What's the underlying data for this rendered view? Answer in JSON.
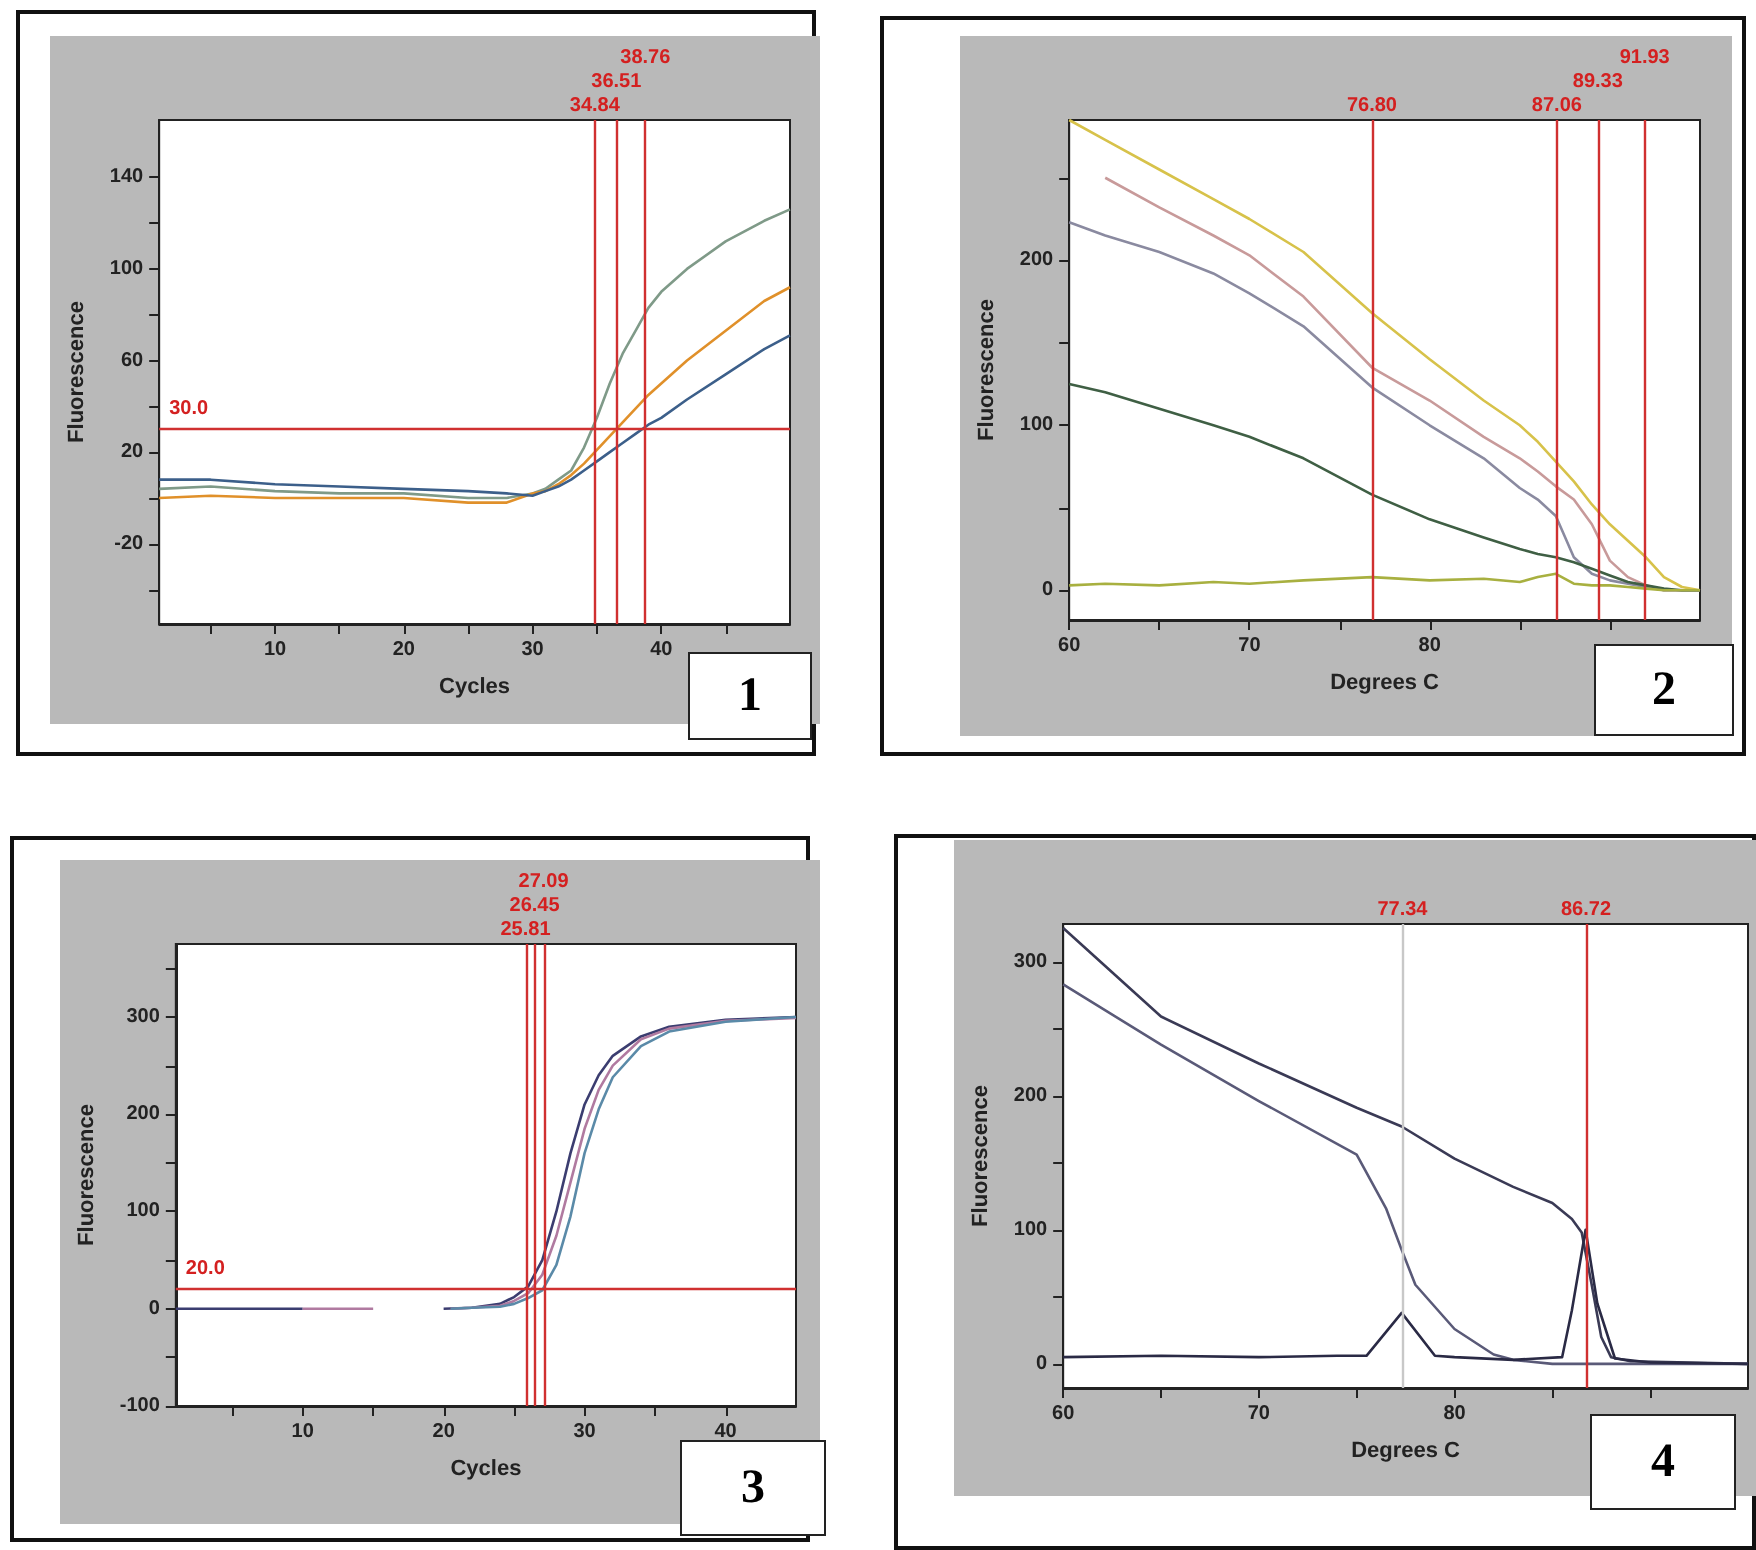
{
  "chart_data": [
    {
      "type": "line",
      "xlabel": "Cycles",
      "ylabel": "Fluorescence",
      "annotations": [
        "1"
      ],
      "xlim": [
        1,
        50
      ],
      "ylim": [
        -55,
        165
      ],
      "xticks": [
        {
          "value": 5,
          "label": null
        },
        10,
        {
          "value": 15,
          "label": null
        },
        20,
        {
          "value": 25,
          "label": null
        },
        30,
        {
          "value": 35,
          "label": null
        },
        40,
        {
          "value": 45,
          "label": null
        }
      ],
      "yticks": [
        {
          "value": -40,
          "label": null
        },
        -20,
        {
          "value": 0,
          "label": null
        },
        20,
        {
          "value": 40,
          "label": null
        },
        60,
        {
          "value": 80,
          "label": null
        },
        100,
        {
          "value": 120,
          "label": null
        },
        140
      ],
      "x": [
        1,
        5,
        10,
        15,
        20,
        25,
        28,
        30,
        31,
        32,
        33,
        34,
        35,
        36,
        37,
        38,
        39,
        40,
        42,
        45,
        48,
        50
      ],
      "series": [
        {
          "color": "#7f9a88",
          "values": [
            4,
            5,
            3,
            2,
            2,
            0,
            0,
            2,
            4,
            8,
            12,
            22,
            35,
            50,
            63,
            73,
            83,
            90,
            100,
            112,
            121,
            126
          ]
        },
        {
          "color": "#e0902a",
          "values": [
            0,
            1,
            0,
            0,
            0,
            -2,
            -2,
            2,
            3,
            6,
            10,
            15,
            21,
            27,
            33,
            39,
            45,
            50,
            60,
            73,
            86,
            92
          ]
        },
        {
          "color": "#3c5f8a",
          "values": [
            8,
            8,
            6,
            5,
            4,
            3,
            2,
            1,
            3,
            5,
            8,
            12,
            16,
            20,
            24,
            28,
            32,
            35,
            43,
            54,
            65,
            71
          ]
        }
      ],
      "ref_lines": [
        {
          "axis": "y",
          "value": 30,
          "label": "30.0",
          "color": "#d03030"
        },
        {
          "axis": "x",
          "value": 34.84,
          "label": "34.84",
          "color": "#d03030"
        },
        {
          "axis": "x",
          "value": 36.51,
          "label": "36.51",
          "color": "#d03030"
        },
        {
          "axis": "x",
          "value": 38.76,
          "label": "38.76",
          "color": "#d03030"
        }
      ]
    },
    {
      "type": "line",
      "xlabel": "Degrees C",
      "ylabel": "Fluorescence",
      "annotations": [
        "2"
      ],
      "xlim": [
        60,
        95
      ],
      "ylim": [
        -18,
        285
      ],
      "xticks": [
        60,
        {
          "value": 65,
          "label": null
        },
        70,
        {
          "value": 75,
          "label": null
        },
        80,
        {
          "value": 85,
          "label": null
        },
        {
          "value": 90,
          "label": null
        }
      ],
      "yticks": [
        0,
        {
          "value": 50,
          "label": null
        },
        100,
        {
          "value": 150,
          "label": null
        },
        200,
        {
          "value": 250,
          "label": null
        }
      ],
      "x": [
        60,
        62,
        65,
        68,
        70,
        73,
        76.8,
        80,
        83,
        85,
        86,
        87,
        88,
        89,
        90,
        91,
        92,
        93,
        94,
        95
      ],
      "series": [
        {
          "color": "#d7c24a",
          "values": [
            285,
            273,
            255,
            237,
            225,
            205,
            168,
            140,
            115,
            100,
            90,
            78,
            66,
            52,
            40,
            30,
            20,
            8,
            2,
            0
          ]
        },
        {
          "color": "#c89a9a",
          "values": [
            null,
            250,
            232,
            215,
            203,
            178,
            135,
            115,
            93,
            80,
            72,
            63,
            55,
            40,
            18,
            8,
            3,
            0,
            0,
            0
          ]
        },
        {
          "color": "#8a8aa0",
          "values": [
            223,
            215,
            205,
            192,
            180,
            160,
            123,
            100,
            80,
            62,
            55,
            45,
            20,
            10,
            6,
            4,
            2,
            0,
            0,
            0
          ]
        },
        {
          "color": "#3f5f44",
          "values": [
            125,
            120,
            110,
            100,
            93,
            80,
            58,
            43,
            32,
            25,
            22,
            20,
            17,
            13,
            9,
            5,
            3,
            1,
            0,
            0
          ]
        },
        {
          "color": "#a8b040",
          "values": [
            3,
            4,
            3,
            5,
            4,
            6,
            8,
            6,
            7,
            5,
            8,
            10,
            4,
            3,
            3,
            2,
            1,
            0,
            0,
            0
          ]
        }
      ],
      "ref_lines": [
        {
          "axis": "x",
          "value": 76.8,
          "label": "76.80",
          "color": "#d03030"
        },
        {
          "axis": "x",
          "value": 87.06,
          "label": "87.06",
          "color": "#d03030"
        },
        {
          "axis": "x",
          "value": 89.33,
          "label": "89.33",
          "color": "#d03030"
        },
        {
          "axis": "x",
          "value": 91.93,
          "label": "91.93",
          "color": "#d03030"
        }
      ]
    },
    {
      "type": "line",
      "xlabel": "Cycles",
      "ylabel": "Fluorescence",
      "annotations": [
        "3"
      ],
      "xlim": [
        1,
        45
      ],
      "ylim": [
        -100,
        375
      ],
      "xticks": [
        {
          "value": 5,
          "label": null
        },
        10,
        {
          "value": 15,
          "label": null
        },
        20,
        {
          "value": 25,
          "label": null
        },
        30,
        {
          "value": 35,
          "label": null
        },
        40
      ],
      "yticks": [
        -100,
        {
          "value": -50,
          "label": null
        },
        0,
        {
          "value": 50,
          "label": null
        },
        100,
        {
          "value": 150,
          "label": null
        },
        200,
        {
          "value": 250,
          "label": null
        },
        300,
        {
          "value": 350,
          "label": null
        }
      ],
      "series": [
        {
          "color": "#3b3d70",
          "x": [
            1,
            5,
            10,
            11,
            20,
            22,
            24,
            25,
            26,
            27,
            28,
            29,
            30,
            31,
            32,
            34,
            36,
            40,
            45
          ],
          "values": [
            0,
            0,
            0,
            null,
            0,
            1,
            5,
            12,
            23,
            50,
            100,
            160,
            210,
            240,
            260,
            280,
            290,
            297,
            300
          ]
        },
        {
          "color": "#b07aa0",
          "x": [
            10,
            15,
            16,
            20.5,
            22,
            24,
            25,
            26,
            27,
            28,
            29,
            30,
            31,
            32,
            34,
            36,
            40,
            45
          ],
          "values": [
            0,
            0,
            null,
            0,
            1,
            3,
            8,
            16,
            35,
            75,
            130,
            185,
            225,
            250,
            277,
            288,
            296,
            299
          ]
        },
        {
          "color": "#5a8aa8",
          "x": [
            20.5,
            22,
            24,
            25,
            26,
            27,
            28,
            29,
            30,
            31,
            32,
            34,
            36,
            40,
            45
          ],
          "values": [
            0,
            1,
            2,
            5,
            11,
            19,
            45,
            95,
            160,
            205,
            238,
            270,
            285,
            295,
            300
          ]
        }
      ],
      "ref_lines": [
        {
          "axis": "y",
          "value": 20,
          "label": "20.0",
          "color": "#d03030"
        },
        {
          "axis": "x",
          "value": 25.81,
          "label": "25.81",
          "color": "#d03030"
        },
        {
          "axis": "x",
          "value": 26.45,
          "label": "26.45",
          "color": "#d03030"
        },
        {
          "axis": "x",
          "value": 27.09,
          "label": "27.09",
          "color": "#d03030"
        }
      ]
    },
    {
      "type": "line",
      "xlabel": "Degrees C",
      "ylabel": "Fluorescence",
      "annotations": [
        "4"
      ],
      "xlim": [
        60,
        95
      ],
      "ylim": [
        -18,
        328
      ],
      "xticks": [
        60,
        {
          "value": 65,
          "label": null
        },
        70,
        {
          "value": 75,
          "label": null
        },
        80,
        {
          "value": 85,
          "label": null
        },
        {
          "value": 90,
          "label": null
        }
      ],
      "yticks": [
        0,
        {
          "value": 50,
          "label": null
        },
        100,
        {
          "value": 150,
          "label": null
        },
        200,
        {
          "value": 250,
          "label": null
        },
        300
      ],
      "series": [
        {
          "color": "#3a3a55",
          "x": [
            60,
            65,
            70,
            75,
            77.3,
            80,
            83,
            85,
            86,
            86.5,
            87,
            87.5,
            88,
            89,
            95
          ],
          "values": [
            325,
            259,
            224,
            191,
            177,
            153,
            132,
            120,
            108,
            98,
            60,
            20,
            5,
            2,
            0
          ]
        },
        {
          "color": "#5a5a78",
          "x": [
            60,
            65,
            70,
            75,
            76.5,
            77.3,
            78,
            80,
            82,
            83,
            85,
            90,
            95
          ],
          "values": [
            283,
            238,
            196,
            156,
            116,
            85,
            59,
            26,
            7,
            3,
            0,
            0,
            0
          ]
        },
        {
          "color": "#2a2a45",
          "x": [
            60,
            65,
            70,
            74,
            75.5,
            77.3,
            79,
            80,
            83,
            85.5,
            86,
            86.7,
            87.3,
            88.2,
            90,
            95
          ],
          "values": [
            5,
            6,
            5,
            6,
            6,
            38,
            6,
            5,
            3,
            5,
            40,
            100,
            45,
            4,
            1,
            0
          ]
        }
      ],
      "ref_lines": [
        {
          "axis": "x",
          "value": 77.34,
          "label": "77.34",
          "color": "#c8c8c8"
        },
        {
          "axis": "x",
          "value": 86.72,
          "label": "86.72",
          "color": "#d03030"
        }
      ]
    }
  ]
}
